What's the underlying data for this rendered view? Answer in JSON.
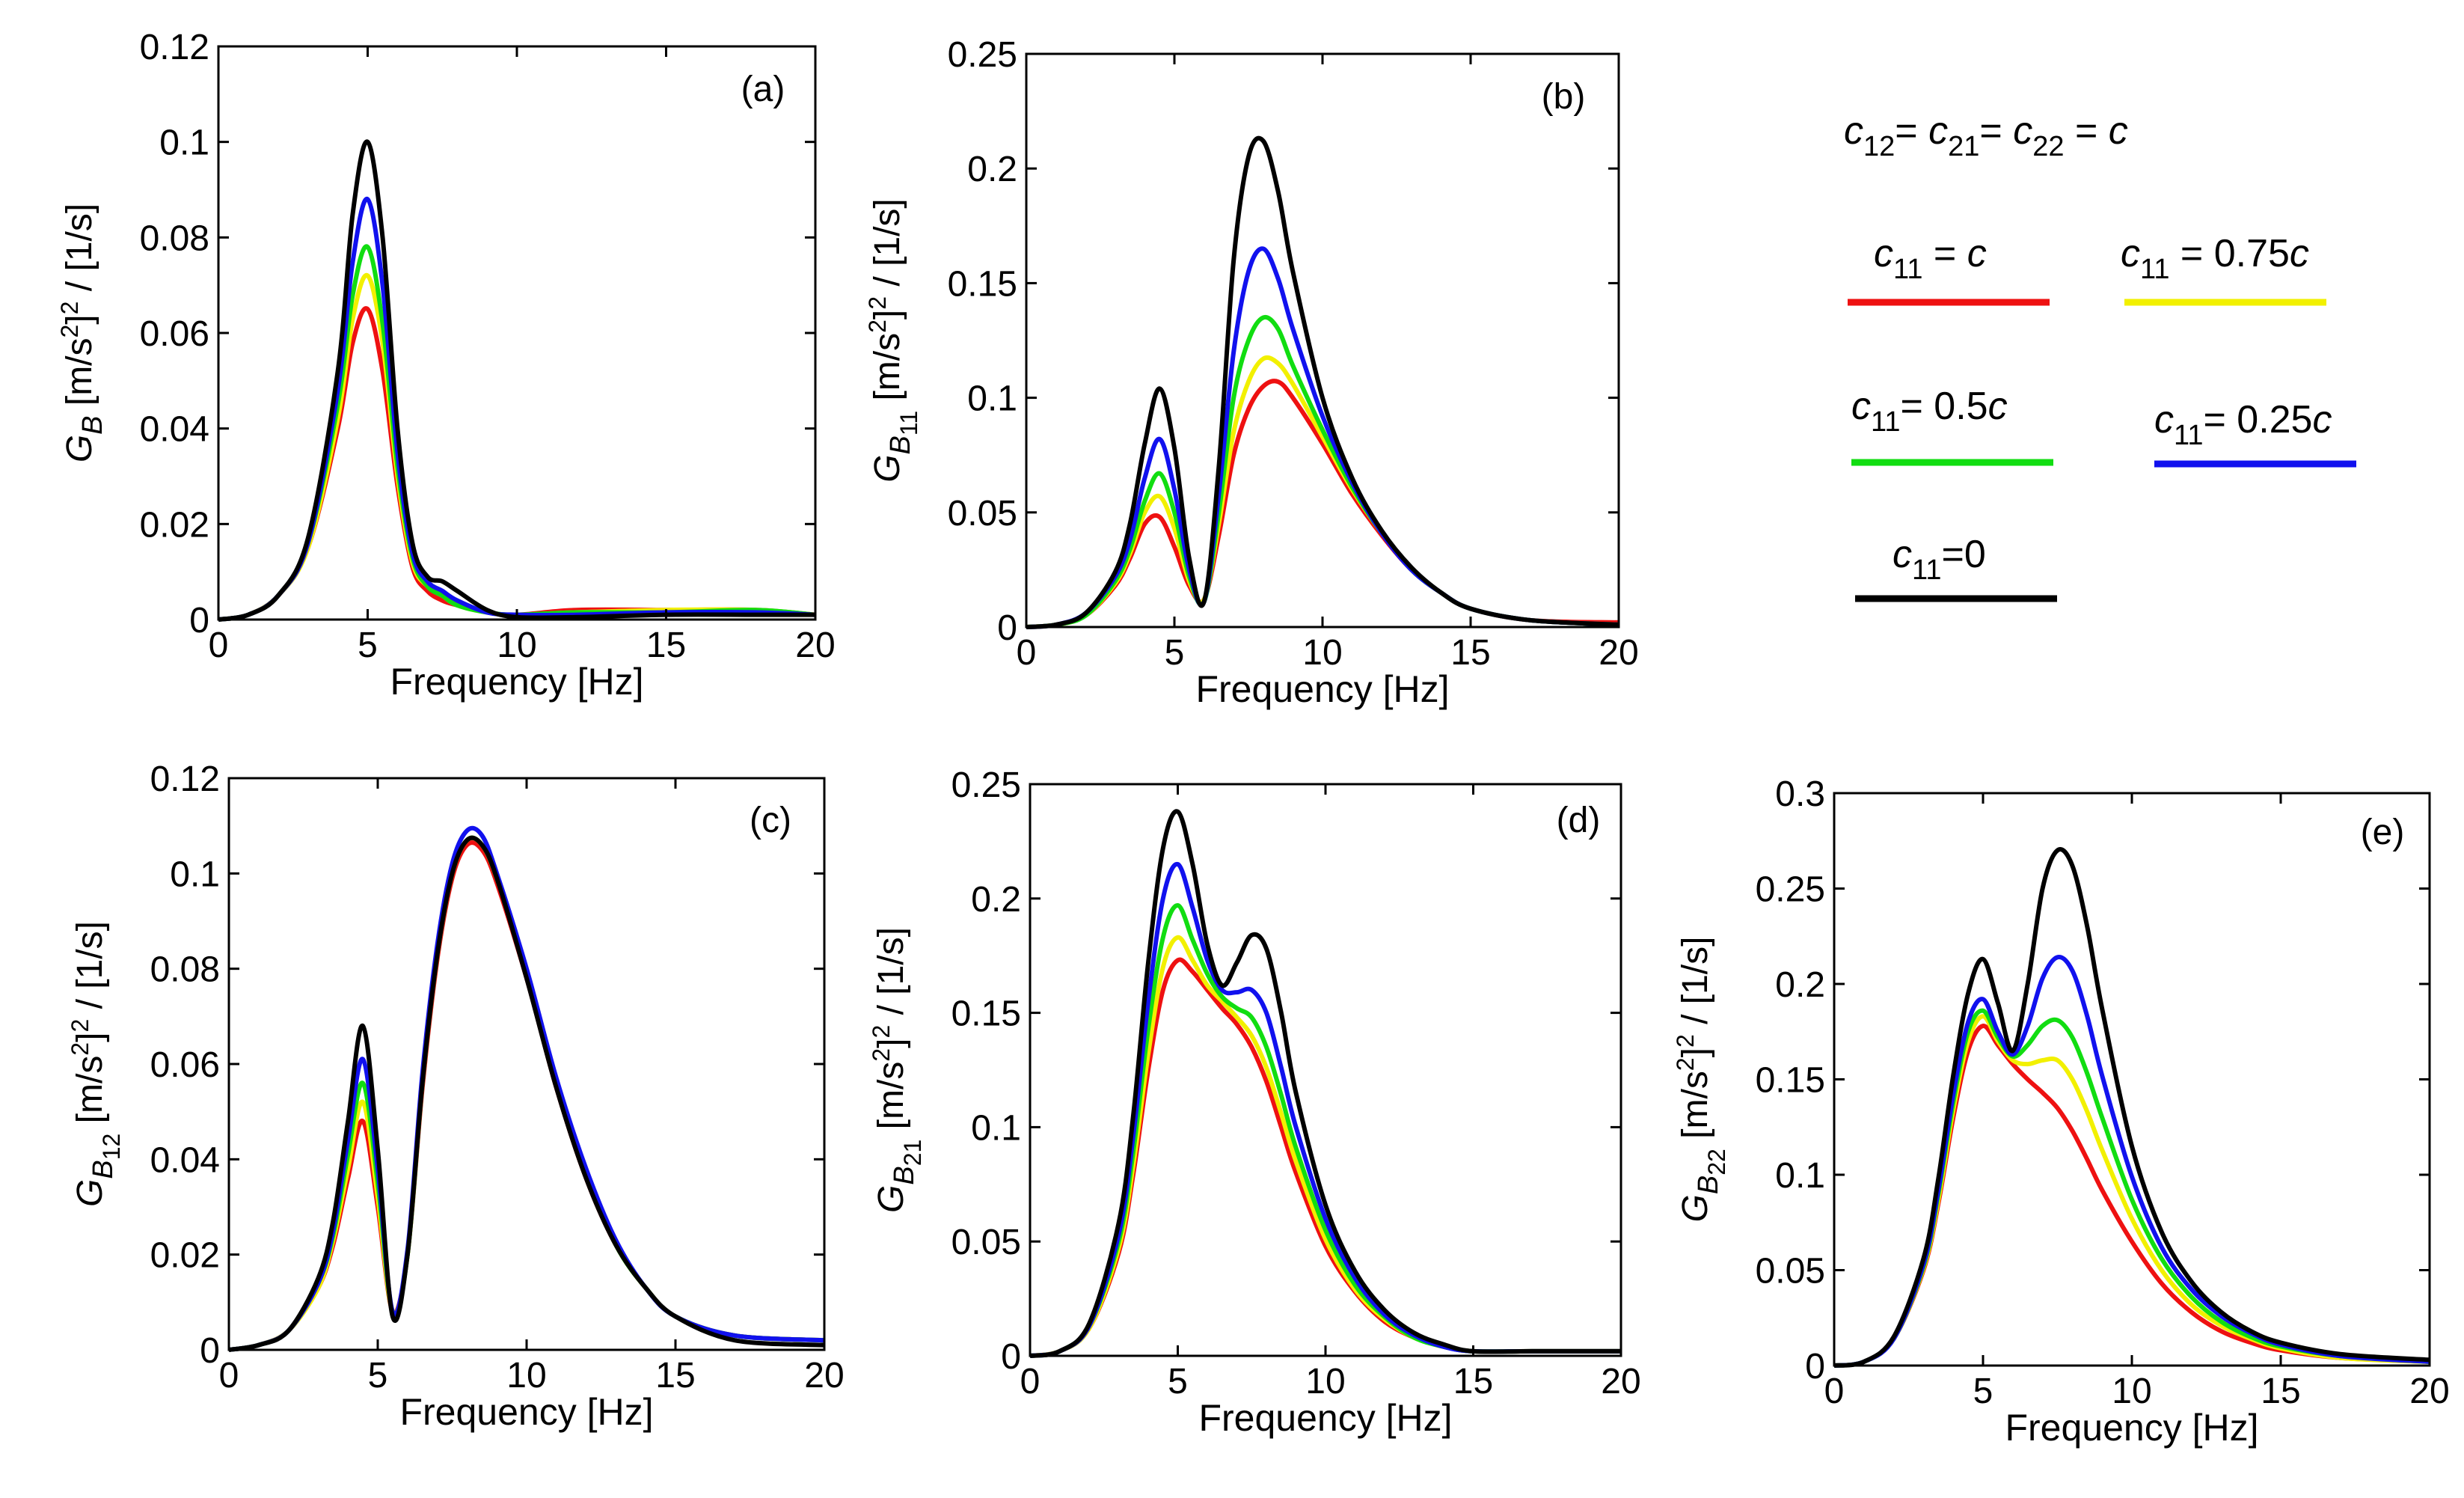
{
  "colors": {
    "red": "#ee1111",
    "yellow": "#f2f000",
    "green": "#11dd11",
    "blue": "#1111ee",
    "black": "#000000"
  },
  "legend": {
    "title": "c12= c21= c22 = c",
    "entries": [
      {
        "label": "c11 = c",
        "color": "#ee1111"
      },
      {
        "label": "c11 = 0.75c",
        "color": "#f2f000"
      },
      {
        "label": "c11= 0.5c",
        "color": "#11dd11"
      },
      {
        "label": "c11= 0.25c",
        "color": "#1111ee"
      },
      {
        "label": "c11=0",
        "color": "#000000"
      }
    ]
  },
  "chart_data": [
    {
      "type": "line",
      "panel": "(a)",
      "xlabel": "Frequency [Hz]",
      "ylabel": "GB [m/s2]2 / [1/s]",
      "xlim": [
        0,
        20
      ],
      "ylim": [
        0,
        0.12
      ],
      "xticks": [
        "0",
        "5",
        "10",
        "15",
        "20"
      ],
      "yticks": [
        "0",
        "0.02",
        "0.04",
        "0.06",
        "0.08",
        "0.1",
        "0.12"
      ],
      "x": [
        0,
        1,
        2,
        3,
        4,
        4.5,
        5,
        5.5,
        6,
        6.5,
        7,
        7.5,
        8,
        9,
        10,
        12,
        15,
        18,
        20
      ],
      "series": [
        {
          "name": "c11 = c",
          "color": "#ee1111",
          "values": [
            0,
            0.001,
            0.005,
            0.015,
            0.04,
            0.058,
            0.065,
            0.052,
            0.028,
            0.011,
            0.006,
            0.004,
            0.003,
            0.0015,
            0.001,
            0.002,
            0.002,
            0.002,
            0.001
          ]
        },
        {
          "name": "c11 = 0.75c",
          "color": "#f2f000",
          "values": [
            0,
            0.001,
            0.005,
            0.015,
            0.042,
            0.063,
            0.072,
            0.058,
            0.03,
            0.012,
            0.007,
            0.005,
            0.003,
            0.0015,
            0.001,
            0.0015,
            0.002,
            0.002,
            0.001
          ]
        },
        {
          "name": "c11= 0.5c",
          "color": "#11dd11",
          "values": [
            0,
            0.001,
            0.005,
            0.016,
            0.045,
            0.068,
            0.078,
            0.062,
            0.032,
            0.013,
            0.007,
            0.005,
            0.003,
            0.0015,
            0.001,
            0.0015,
            0.0015,
            0.002,
            0.001
          ]
        },
        {
          "name": "c11= 0.25c",
          "color": "#1111ee",
          "values": [
            0,
            0.001,
            0.005,
            0.016,
            0.048,
            0.075,
            0.088,
            0.07,
            0.035,
            0.014,
            0.008,
            0.006,
            0.004,
            0.0015,
            0.001,
            0.001,
            0.0015,
            0.0015,
            0.001
          ]
        },
        {
          "name": "c11=0",
          "color": "#000000",
          "values": [
            0,
            0.001,
            0.005,
            0.017,
            0.052,
            0.085,
            0.1,
            0.08,
            0.04,
            0.016,
            0.009,
            0.008,
            0.006,
            0.002,
            0.0005,
            0.0005,
            0.001,
            0.001,
            0.001
          ]
        }
      ]
    },
    {
      "type": "line",
      "panel": "(b)",
      "xlabel": "Frequency [Hz]",
      "ylabel": "GB11 [m/s2]2 / [1/s]",
      "xlim": [
        0,
        20
      ],
      "ylim": [
        0,
        0.25
      ],
      "xticks": [
        "0",
        "5",
        "10",
        "15",
        "20"
      ],
      "yticks": [
        "0",
        "0.05",
        "0.1",
        "0.15",
        "0.2",
        "0.25"
      ],
      "x": [
        0,
        1,
        2,
        3,
        3.5,
        4,
        4.5,
        5,
        5.5,
        6,
        6.5,
        7,
        7.5,
        8,
        8.5,
        9,
        10,
        11,
        12,
        13,
        14,
        15,
        17,
        20
      ],
      "series": [
        {
          "name": "c11 = c",
          "color": "#ee1111",
          "values": [
            0,
            0.001,
            0.005,
            0.018,
            0.03,
            0.045,
            0.048,
            0.035,
            0.018,
            0.012,
            0.04,
            0.075,
            0.095,
            0.105,
            0.107,
            0.1,
            0.08,
            0.058,
            0.04,
            0.025,
            0.015,
            0.008,
            0.003,
            0.002
          ]
        },
        {
          "name": "c11 = 0.75c",
          "color": "#f2f000",
          "values": [
            0,
            0.001,
            0.005,
            0.019,
            0.032,
            0.05,
            0.057,
            0.043,
            0.02,
            0.012,
            0.045,
            0.085,
            0.107,
            0.117,
            0.115,
            0.106,
            0.083,
            0.06,
            0.041,
            0.025,
            0.015,
            0.008,
            0.003,
            0.001
          ]
        },
        {
          "name": "c11= 0.5c",
          "color": "#11dd11",
          "values": [
            0,
            0.001,
            0.005,
            0.02,
            0.034,
            0.055,
            0.067,
            0.05,
            0.022,
            0.011,
            0.05,
            0.1,
            0.125,
            0.135,
            0.13,
            0.114,
            0.086,
            0.061,
            0.041,
            0.025,
            0.015,
            0.008,
            0.003,
            0.001
          ]
        },
        {
          "name": "c11= 0.25c",
          "color": "#1111ee",
          "values": [
            0,
            0.001,
            0.006,
            0.022,
            0.038,
            0.065,
            0.082,
            0.06,
            0.025,
            0.011,
            0.058,
            0.12,
            0.155,
            0.165,
            0.152,
            0.13,
            0.092,
            0.063,
            0.041,
            0.025,
            0.015,
            0.008,
            0.003,
            0.001
          ]
        },
        {
          "name": "c11=0",
          "color": "#000000",
          "values": [
            0,
            0.001,
            0.006,
            0.024,
            0.045,
            0.08,
            0.104,
            0.078,
            0.03,
            0.011,
            0.07,
            0.16,
            0.205,
            0.212,
            0.19,
            0.155,
            0.1,
            0.065,
            0.042,
            0.026,
            0.015,
            0.008,
            0.003,
            0.001
          ]
        }
      ]
    },
    {
      "type": "line",
      "panel": "(c)",
      "xlabel": "Frequency [Hz]",
      "ylabel": "GB12 [m/s2]2 / [1/s]",
      "xlim": [
        0,
        20
      ],
      "ylim": [
        0,
        0.12
      ],
      "xticks": [
        "0",
        "5",
        "10",
        "15",
        "20"
      ],
      "yticks": [
        "0",
        "0.02",
        "0.04",
        "0.06",
        "0.08",
        "0.1",
        "0.12"
      ],
      "x": [
        0,
        1,
        2,
        3,
        3.5,
        4,
        4.5,
        5,
        5.5,
        6,
        6.5,
        7,
        7.5,
        8,
        8.5,
        9,
        10,
        11,
        12,
        13,
        14,
        15,
        17,
        20
      ],
      "series": [
        {
          "name": "c11 = c",
          "color": "#ee1111",
          "values": [
            0,
            0.001,
            0.004,
            0.013,
            0.022,
            0.036,
            0.048,
            0.03,
            0.008,
            0.02,
            0.055,
            0.082,
            0.099,
            0.106,
            0.105,
            0.098,
            0.078,
            0.055,
            0.036,
            0.022,
            0.013,
            0.007,
            0.003,
            0.002
          ]
        },
        {
          "name": "c11 = 0.75c",
          "color": "#f2f000",
          "values": [
            0,
            0.001,
            0.004,
            0.013,
            0.023,
            0.038,
            0.052,
            0.032,
            0.008,
            0.02,
            0.056,
            0.083,
            0.1,
            0.107,
            0.106,
            0.099,
            0.079,
            0.056,
            0.037,
            0.022,
            0.013,
            0.007,
            0.003,
            0.002
          ]
        },
        {
          "name": "c11= 0.5c",
          "color": "#11dd11",
          "values": [
            0,
            0.001,
            0.004,
            0.014,
            0.024,
            0.041,
            0.056,
            0.035,
            0.008,
            0.02,
            0.056,
            0.083,
            0.1,
            0.107,
            0.106,
            0.099,
            0.079,
            0.056,
            0.037,
            0.022,
            0.013,
            0.007,
            0.003,
            0.002
          ]
        },
        {
          "name": "c11= 0.25c",
          "color": "#1111ee",
          "values": [
            0,
            0.001,
            0.004,
            0.014,
            0.025,
            0.044,
            0.061,
            0.038,
            0.008,
            0.021,
            0.058,
            0.085,
            0.102,
            0.109,
            0.108,
            0.1,
            0.08,
            0.057,
            0.038,
            0.023,
            0.013,
            0.007,
            0.003,
            0.002
          ]
        },
        {
          "name": "c11=0",
          "color": "#000000",
          "values": [
            0,
            0.001,
            0.004,
            0.015,
            0.027,
            0.048,
            0.068,
            0.042,
            0.007,
            0.02,
            0.056,
            0.083,
            0.1,
            0.107,
            0.106,
            0.099,
            0.078,
            0.055,
            0.036,
            0.022,
            0.013,
            0.007,
            0.002,
            0.001
          ]
        }
      ]
    },
    {
      "type": "line",
      "panel": "(d)",
      "xlabel": "Frequency [Hz]",
      "ylabel": "GB21 [m/s2]2 / [1/s]",
      "xlim": [
        0,
        20
      ],
      "ylim": [
        0,
        0.25
      ],
      "xticks": [
        "0",
        "5",
        "10",
        "15",
        "20"
      ],
      "yticks": [
        "0",
        "0.05",
        "0.1",
        "0.15",
        "0.2",
        "0.25"
      ],
      "x": [
        0,
        1,
        2,
        3,
        3.5,
        4,
        4.5,
        5,
        5.5,
        6,
        6.5,
        7,
        7.5,
        8,
        8.5,
        9,
        10,
        11,
        12,
        13,
        14,
        15,
        17,
        20
      ],
      "series": [
        {
          "name": "c11 = c",
          "color": "#ee1111",
          "values": [
            0,
            0.002,
            0.012,
            0.045,
            0.08,
            0.125,
            0.16,
            0.173,
            0.168,
            0.16,
            0.152,
            0.145,
            0.135,
            0.12,
            0.1,
            0.08,
            0.048,
            0.028,
            0.015,
            0.008,
            0.004,
            0.002,
            0.002,
            0.002
          ]
        },
        {
          "name": "c11 = 0.75c",
          "color": "#f2f000",
          "values": [
            0,
            0.002,
            0.012,
            0.047,
            0.084,
            0.132,
            0.17,
            0.183,
            0.173,
            0.162,
            0.155,
            0.148,
            0.14,
            0.126,
            0.106,
            0.085,
            0.051,
            0.029,
            0.016,
            0.008,
            0.004,
            0.002,
            0.002,
            0.002
          ]
        },
        {
          "name": "c11= 0.5c",
          "color": "#11dd11",
          "values": [
            0,
            0.002,
            0.013,
            0.05,
            0.09,
            0.143,
            0.183,
            0.197,
            0.182,
            0.167,
            0.157,
            0.152,
            0.148,
            0.135,
            0.114,
            0.091,
            0.055,
            0.031,
            0.017,
            0.008,
            0.004,
            0.002,
            0.002,
            0.002
          ]
        },
        {
          "name": "c11= 0.25c",
          "color": "#1111ee",
          "values": [
            0,
            0.002,
            0.013,
            0.053,
            0.097,
            0.155,
            0.2,
            0.215,
            0.196,
            0.173,
            0.16,
            0.159,
            0.16,
            0.15,
            0.126,
            0.1,
            0.06,
            0.034,
            0.018,
            0.009,
            0.004,
            0.002,
            0.002,
            0.002
          ]
        },
        {
          "name": "c11=0",
          "color": "#000000",
          "values": [
            0,
            0.002,
            0.014,
            0.058,
            0.106,
            0.172,
            0.222,
            0.238,
            0.215,
            0.18,
            0.162,
            0.172,
            0.184,
            0.178,
            0.15,
            0.115,
            0.066,
            0.037,
            0.02,
            0.01,
            0.005,
            0.002,
            0.002,
            0.002
          ]
        }
      ]
    },
    {
      "type": "line",
      "panel": "(e)",
      "xlabel": "Frequency [Hz]",
      "ylabel": "GB22 [m/s2]2 / [1/s]",
      "xlim": [
        0,
        20
      ],
      "ylim": [
        0,
        0.3
      ],
      "xticks": [
        "0",
        "5",
        "10",
        "15",
        "20"
      ],
      "yticks": [
        "0",
        "0.05",
        "0.1",
        "0.15",
        "0.2",
        "0.25",
        "0.3"
      ],
      "x": [
        0,
        1,
        2,
        3,
        3.5,
        4,
        4.5,
        5,
        5.5,
        6,
        6.5,
        7,
        7.5,
        8,
        8.5,
        9,
        10,
        11,
        12,
        13,
        14,
        15,
        17,
        20
      ],
      "series": [
        {
          "name": "c11 = c",
          "color": "#ee1111",
          "values": [
            0,
            0.002,
            0.014,
            0.05,
            0.085,
            0.13,
            0.165,
            0.178,
            0.168,
            0.158,
            0.15,
            0.143,
            0.135,
            0.123,
            0.108,
            0.092,
            0.065,
            0.043,
            0.028,
            0.018,
            0.012,
            0.008,
            0.004,
            0.002
          ]
        },
        {
          "name": "c11 = 0.75c",
          "color": "#f2f000",
          "values": [
            0,
            0.002,
            0.014,
            0.051,
            0.087,
            0.134,
            0.17,
            0.183,
            0.17,
            0.16,
            0.158,
            0.16,
            0.16,
            0.15,
            0.133,
            0.113,
            0.077,
            0.05,
            0.032,
            0.021,
            0.014,
            0.009,
            0.004,
            0.002
          ]
        },
        {
          "name": "c11= 0.5c",
          "color": "#11dd11",
          "values": [
            0,
            0.002,
            0.014,
            0.052,
            0.09,
            0.138,
            0.175,
            0.186,
            0.172,
            0.162,
            0.168,
            0.178,
            0.181,
            0.172,
            0.153,
            0.13,
            0.087,
            0.056,
            0.036,
            0.023,
            0.015,
            0.01,
            0.005,
            0.002
          ]
        },
        {
          "name": "c11= 0.25c",
          "color": "#1111ee",
          "values": [
            0,
            0.002,
            0.014,
            0.053,
            0.092,
            0.142,
            0.18,
            0.192,
            0.175,
            0.163,
            0.178,
            0.203,
            0.214,
            0.207,
            0.183,
            0.152,
            0.099,
            0.062,
            0.04,
            0.026,
            0.017,
            0.011,
            0.005,
            0.002
          ]
        },
        {
          "name": "c11=0",
          "color": "#000000",
          "values": [
            0,
            0.002,
            0.015,
            0.056,
            0.098,
            0.152,
            0.195,
            0.213,
            0.19,
            0.165,
            0.2,
            0.25,
            0.27,
            0.262,
            0.23,
            0.187,
            0.115,
            0.07,
            0.044,
            0.028,
            0.018,
            0.012,
            0.006,
            0.003
          ]
        }
      ]
    }
  ]
}
